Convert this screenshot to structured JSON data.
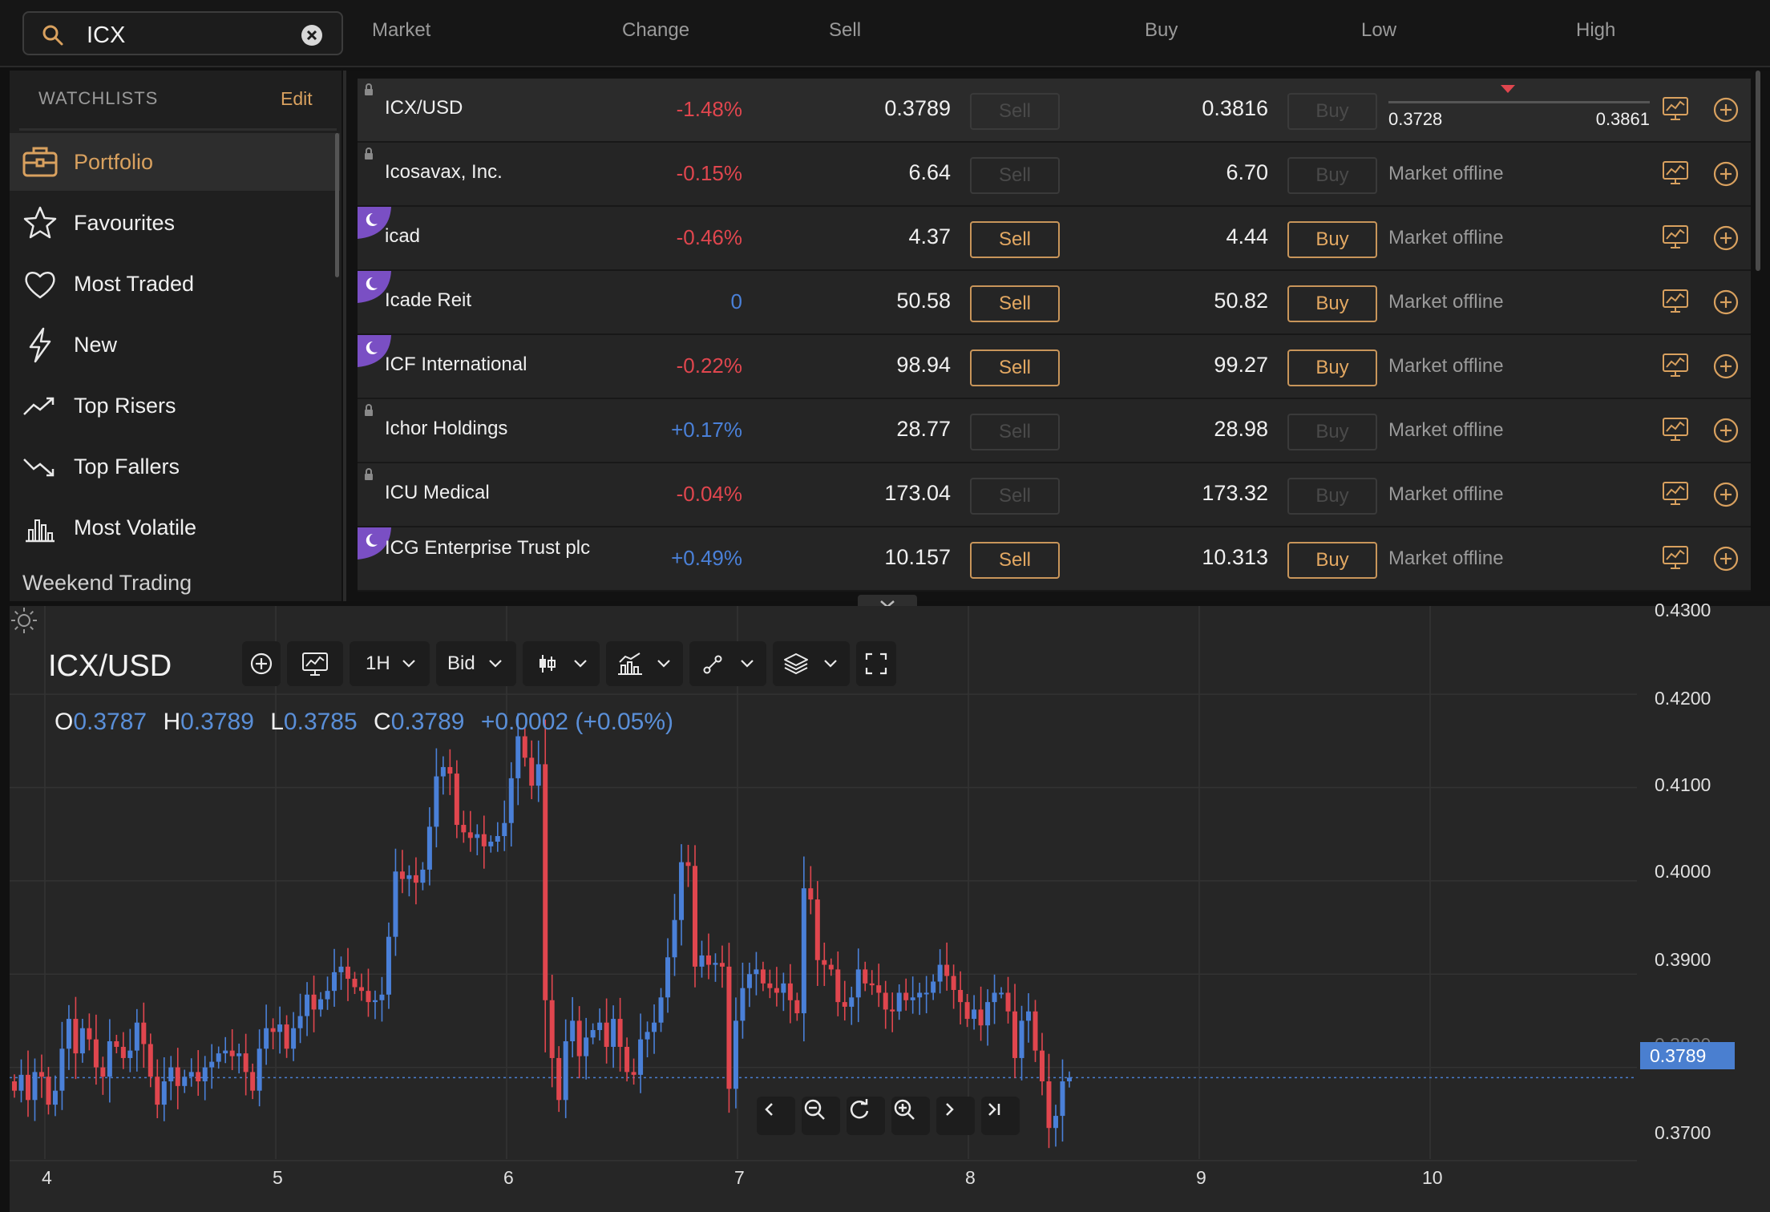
{
  "search": {
    "value": "ICX"
  },
  "columns": {
    "market": "Market",
    "change": "Change",
    "sell": "Sell",
    "buy": "Buy",
    "low": "Low",
    "high": "High"
  },
  "sidebar": {
    "header": "WATCHLISTS",
    "edit": "Edit",
    "items": [
      {
        "label": "Portfolio",
        "icon": "briefcase-icon"
      },
      {
        "label": "Favourites",
        "icon": "star-icon"
      },
      {
        "label": "Most Traded",
        "icon": "heart-icon"
      },
      {
        "label": "New",
        "icon": "lightning-icon"
      },
      {
        "label": "Top Risers",
        "icon": "trend-up-icon"
      },
      {
        "label": "Top Fallers",
        "icon": "trend-down-icon"
      },
      {
        "label": "Most Volatile",
        "icon": "bar-chart-icon"
      }
    ],
    "weekend": "Weekend Trading"
  },
  "markets": [
    {
      "name": "ICX/USD",
      "change": "-1.48%",
      "dir": "down",
      "sell": "0.3789",
      "buy": "0.3816",
      "sell_label": "Sell",
      "buy_label": "Buy",
      "open": false,
      "badge": "lock",
      "low": "0.3728",
      "high": "0.3861"
    },
    {
      "name": "Icosavax, Inc.",
      "change": "-0.15%",
      "dir": "down",
      "sell": "6.64",
      "buy": "6.70",
      "sell_label": "Sell",
      "buy_label": "Buy",
      "open": false,
      "badge": "lock",
      "status": "Market offline"
    },
    {
      "name": "icad",
      "change": "-0.46%",
      "dir": "down",
      "sell": "4.37",
      "buy": "4.44",
      "sell_label": "Sell",
      "buy_label": "Buy",
      "open": true,
      "badge": "moon",
      "status": "Market offline"
    },
    {
      "name": "Icade Reit",
      "change": "0",
      "dir": "flat",
      "sell": "50.58",
      "buy": "50.82",
      "sell_label": "Sell",
      "buy_label": "Buy",
      "open": true,
      "badge": "moon",
      "status": "Market offline"
    },
    {
      "name": "ICF International",
      "change": "-0.22%",
      "dir": "down",
      "sell": "98.94",
      "buy": "99.27",
      "sell_label": "Sell",
      "buy_label": "Buy",
      "open": true,
      "badge": "moon",
      "status": "Market offline"
    },
    {
      "name": "Ichor Holdings",
      "change": "+0.17%",
      "dir": "up",
      "sell": "28.77",
      "buy": "28.98",
      "sell_label": "Sell",
      "buy_label": "Buy",
      "open": false,
      "badge": "lock",
      "status": "Market offline"
    },
    {
      "name": "ICU Medical",
      "change": "-0.04%",
      "dir": "down",
      "sell": "173.04",
      "buy": "173.32",
      "sell_label": "Sell",
      "buy_label": "Buy",
      "open": false,
      "badge": "lock",
      "status": "Market offline"
    },
    {
      "name": "ICG Enterprise Trust plc",
      "change": "+0.49%",
      "dir": "up",
      "sell": "10.157",
      "buy": "10.313",
      "sell_label": "Sell",
      "buy_label": "Buy",
      "open": true,
      "badge": "moon",
      "status": "Market offline"
    }
  ],
  "chart": {
    "symbol": "ICX/USD",
    "interval": "1H",
    "price_type": "Bid",
    "ohlc": {
      "o_label": "O",
      "o": "0.3787",
      "h_label": "H",
      "h": "0.3789",
      "l_label": "L",
      "l": "0.3785",
      "c_label": "C",
      "c": "0.3789",
      "change": "+0.0002 (+0.05%)"
    },
    "current_price": "0.3789",
    "colors": {
      "up": "#4a80d8",
      "down": "#e0464e",
      "accent": "#d9a15f"
    }
  },
  "chart_data": {
    "type": "candlestick",
    "title": "ICX/USD",
    "x_ticks": [
      "4",
      "5",
      "6",
      "7",
      "8",
      "9",
      "10"
    ],
    "y_ticks": [
      "0.3700",
      "0.3800",
      "0.3900",
      "0.4000",
      "0.4100",
      "0.4200",
      "0.4300"
    ],
    "ylim": [
      0.3675,
      0.4305
    ],
    "closes": [
      0.3775,
      0.3792,
      0.3765,
      0.3795,
      0.379,
      0.376,
      0.3775,
      0.382,
      0.3852,
      0.3815,
      0.3842,
      0.383,
      0.38,
      0.379,
      0.3828,
      0.3822,
      0.381,
      0.3818,
      0.3848,
      0.3825,
      0.379,
      0.376,
      0.3785,
      0.38,
      0.378,
      0.379,
      0.3795,
      0.3785,
      0.38,
      0.3806,
      0.3815,
      0.3818,
      0.3812,
      0.3815,
      0.3795,
      0.3775,
      0.382,
      0.3842,
      0.3838,
      0.3846,
      0.382,
      0.3842,
      0.3855,
      0.3878,
      0.3862,
      0.3873,
      0.3882,
      0.3902,
      0.3908,
      0.3895,
      0.3886,
      0.3882,
      0.387,
      0.3872,
      0.3878,
      0.394,
      0.401,
      0.4002,
      0.4006,
      0.3998,
      0.4012,
      0.4058,
      0.4112,
      0.4122,
      0.4115,
      0.406,
      0.4052,
      0.4046,
      0.405,
      0.4037,
      0.4042,
      0.4048,
      0.4062,
      0.411,
      0.4155,
      0.4132,
      0.4102,
      0.4125,
      0.3872,
      0.381,
      0.3765,
      0.3828,
      0.385,
      0.3812,
      0.3832,
      0.384,
      0.3848,
      0.3822,
      0.3852,
      0.3822,
      0.3795,
      0.3792,
      0.383,
      0.3838,
      0.3848,
      0.3875,
      0.3918,
      0.3958,
      0.402,
      0.4016,
      0.3908,
      0.392,
      0.391,
      0.3912,
      0.3908,
      0.3777,
      0.385,
      0.3885,
      0.39,
      0.3905,
      0.389,
      0.3885,
      0.388,
      0.389,
      0.3872,
      0.3858,
      0.3992,
      0.398,
      0.3915,
      0.391,
      0.3905,
      0.387,
      0.3865,
      0.3875,
      0.3905,
      0.389,
      0.3888,
      0.388,
      0.3862,
      0.386,
      0.388,
      0.3872,
      0.3875,
      0.388,
      0.388,
      0.3892,
      0.391,
      0.3898,
      0.3883,
      0.387,
      0.3852,
      0.3862,
      0.3845,
      0.387,
      0.388,
      0.388,
      0.386,
      0.381,
      0.385,
      0.386,
      0.3818,
      0.3785,
      0.3735,
      0.3748,
      0.3785,
      0.3789
    ]
  }
}
